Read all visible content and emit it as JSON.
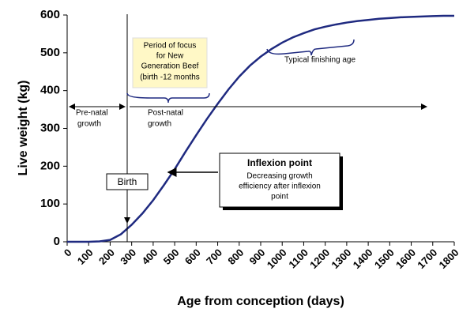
{
  "chart_data": {
    "type": "line",
    "x_label": "Age from conception (days)",
    "y_label": "Live weight (kg)",
    "x": [
      0,
      50,
      100,
      150,
      200,
      250,
      300,
      350,
      400,
      450,
      500,
      550,
      600,
      650,
      700,
      750,
      800,
      850,
      900,
      950,
      1000,
      1050,
      1100,
      1150,
      1200,
      1250,
      1300,
      1350,
      1400,
      1450,
      1500,
      1550,
      1600,
      1650,
      1700,
      1750,
      1800
    ],
    "series": [
      {
        "color": "#1f2a80",
        "values": [
          0,
          0,
          0,
          1,
          5,
          20,
          45,
          75,
          110,
          150,
          192,
          238,
          282,
          325,
          365,
          403,
          437,
          466,
          490,
          510,
          527,
          541,
          552,
          562,
          569,
          575,
          580,
          584,
          587,
          590,
          592,
          594,
          595,
          596,
          597,
          598,
          598
        ]
      }
    ],
    "xlim": [
      0,
      1800
    ],
    "xticks": [
      0,
      100,
      200,
      300,
      400,
      500,
      600,
      700,
      800,
      900,
      1000,
      1100,
      1200,
      1300,
      1400,
      1500,
      1600,
      1700,
      1800
    ],
    "ylim": [
      0,
      600
    ],
    "yticks": [
      0,
      100,
      200,
      300,
      400,
      500,
      600
    ],
    "annotations": {
      "period_focus": [
        "Period of focus",
        "for New",
        "Generation Beef",
        "(birth -12 months"
      ],
      "finishing": "Typical finishing age",
      "prenatal": [
        "Pre-natal",
        "growth"
      ],
      "postnatal": [
        "Post-natal",
        "growth"
      ],
      "birth": "Birth",
      "inflexion_title": "Inflexion point",
      "inflexion_text": [
        "Decreasing growth",
        "efficiency after inflexion",
        "point"
      ]
    }
  }
}
